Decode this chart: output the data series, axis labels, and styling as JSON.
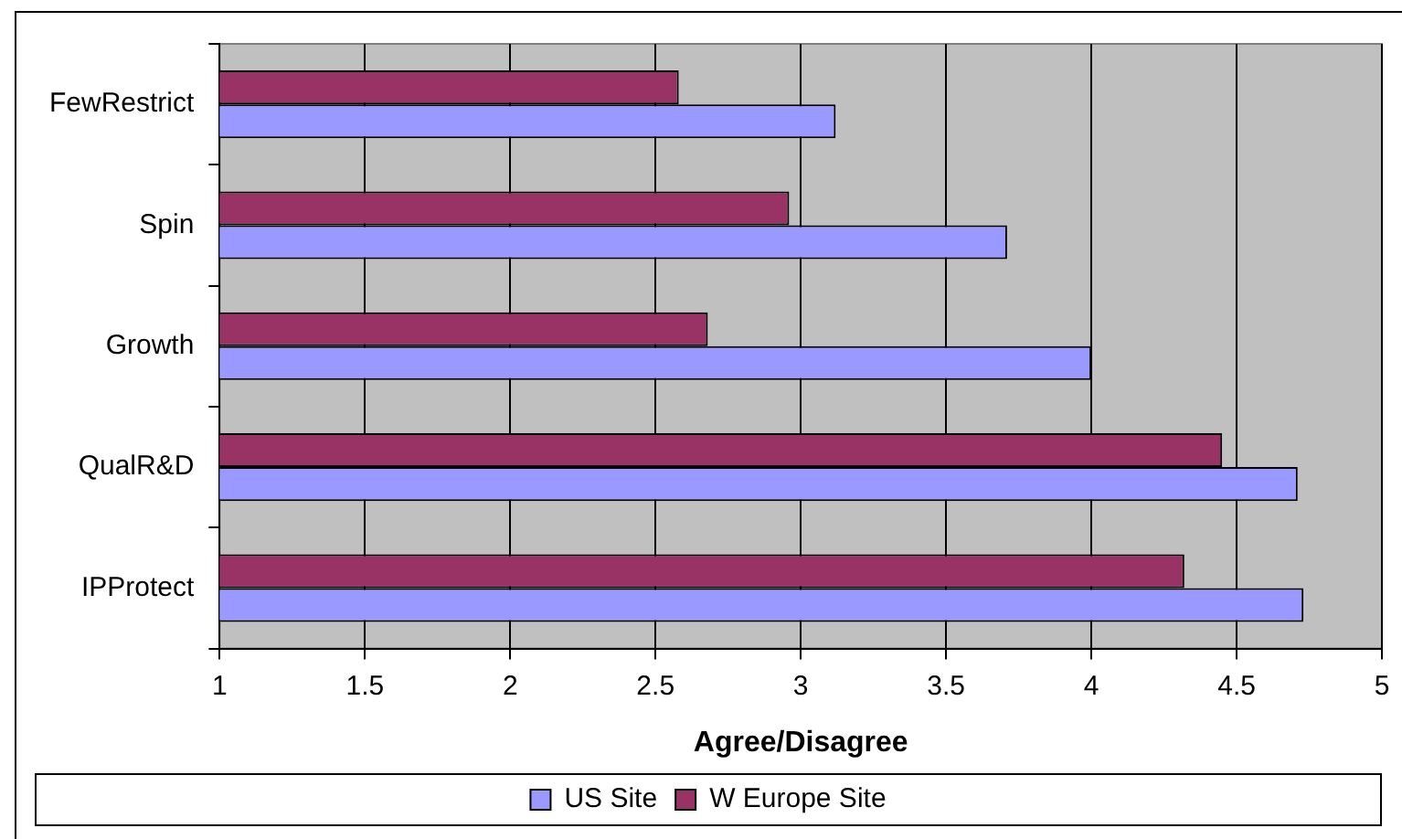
{
  "chart_data": {
    "type": "bar",
    "orientation": "horizontal",
    "xlabel": "Agree/Disagree",
    "categories": [
      "FewRestrict",
      "Spin",
      "Growth",
      "QualR&D",
      "IPProtect"
    ],
    "series": [
      {
        "name": "US Site",
        "color": "#9999ff",
        "values": [
          3.12,
          3.71,
          4.0,
          4.71,
          4.73
        ]
      },
      {
        "name": "W Europe Site",
        "color": "#993366",
        "values": [
          2.58,
          2.96,
          2.68,
          4.45,
          4.32
        ]
      }
    ],
    "xlim": [
      1,
      5
    ],
    "xticks": [
      1,
      1.5,
      2,
      2.5,
      3,
      3.5,
      4,
      4.5,
      5
    ],
    "grid": "x",
    "legend": "bottom"
  }
}
